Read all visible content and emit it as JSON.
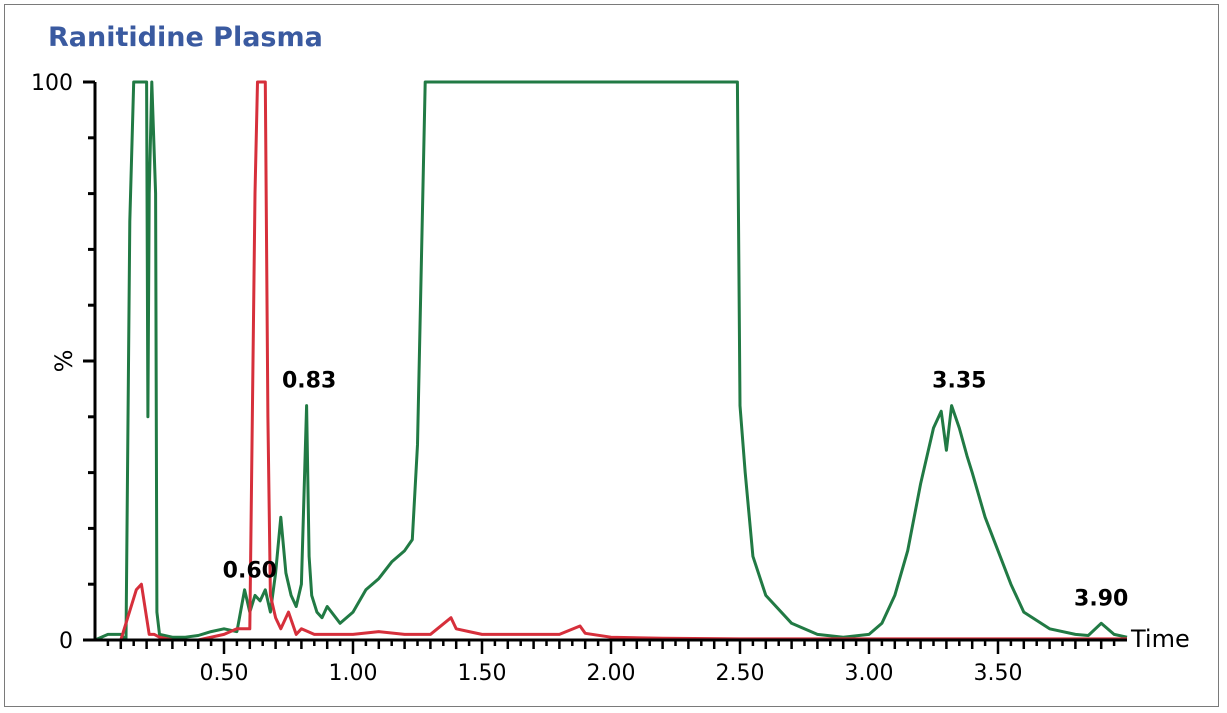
{
  "chart_data": {
    "type": "line",
    "title": "Ranitidine Plasma",
    "xlabel": "Time",
    "ylabel": "%",
    "xlim": [
      0.0,
      4.0
    ],
    "ylim": [
      0,
      100
    ],
    "y_ticks": [
      {
        "value": 0,
        "label": "0"
      },
      {
        "value": 100,
        "label": "100"
      }
    ],
    "x_ticks": [
      {
        "value": 0.5,
        "label": "0.50"
      },
      {
        "value": 1.0,
        "label": "1.00"
      },
      {
        "value": 1.5,
        "label": "1.50"
      },
      {
        "value": 2.0,
        "label": "2.00"
      },
      {
        "value": 2.5,
        "label": "2.50"
      },
      {
        "value": 3.0,
        "label": "3.00"
      },
      {
        "value": 3.5,
        "label": "3.50"
      }
    ],
    "grid": false,
    "series": [
      {
        "color": "#217a44",
        "x": [
          0.0,
          0.05,
          0.1,
          0.12,
          0.135,
          0.15,
          0.17,
          0.2,
          0.205,
          0.21,
          0.22,
          0.235,
          0.24,
          0.25,
          0.3,
          0.35,
          0.4,
          0.45,
          0.5,
          0.55,
          0.58,
          0.6,
          0.62,
          0.64,
          0.66,
          0.68,
          0.7,
          0.72,
          0.74,
          0.76,
          0.78,
          0.8,
          0.82,
          0.83,
          0.84,
          0.86,
          0.88,
          0.9,
          0.95,
          1.0,
          1.05,
          1.1,
          1.15,
          1.2,
          1.23,
          1.25,
          1.28,
          1.3,
          1.5,
          2.0,
          2.4,
          2.49,
          2.5,
          2.52,
          2.55,
          2.6,
          2.7,
          2.8,
          2.9,
          3.0,
          3.05,
          3.1,
          3.15,
          3.2,
          3.25,
          3.28,
          3.3,
          3.32,
          3.35,
          3.38,
          3.4,
          3.45,
          3.5,
          3.55,
          3.6,
          3.7,
          3.8,
          3.85,
          3.9,
          3.95,
          4.0
        ],
        "values": [
          0,
          1,
          1,
          0,
          75,
          100,
          100,
          100,
          40,
          80,
          100,
          80,
          5,
          1,
          0.5,
          0.5,
          0.8,
          1.5,
          2,
          1.5,
          9,
          5,
          8,
          7,
          9,
          5,
          12,
          22,
          12,
          8,
          6,
          10,
          42,
          15,
          8,
          5,
          4,
          6,
          3,
          5,
          9,
          11,
          14,
          16,
          18,
          35,
          100,
          100,
          100,
          100,
          100,
          100,
          42,
          30,
          15,
          8,
          3,
          1,
          0.5,
          1,
          3,
          8,
          16,
          28,
          38,
          41,
          34,
          42,
          38,
          33,
          30,
          22,
          16,
          10,
          5,
          2,
          1,
          0.8,
          3,
          1,
          0.5
        ]
      },
      {
        "color": "#d62f3b",
        "x": [
          0.0,
          0.1,
          0.16,
          0.18,
          0.2,
          0.21,
          0.23,
          0.25,
          0.3,
          0.4,
          0.5,
          0.55,
          0.6,
          0.62,
          0.63,
          0.64,
          0.66,
          0.67,
          0.68,
          0.7,
          0.72,
          0.75,
          0.78,
          0.8,
          0.85,
          0.9,
          1.0,
          1.1,
          1.2,
          1.3,
          1.38,
          1.4,
          1.45,
          1.5,
          1.6,
          1.8,
          1.88,
          1.9,
          2.0,
          2.2,
          2.5,
          3.0,
          3.5,
          4.0
        ],
        "values": [
          0,
          0,
          9,
          10,
          4,
          1,
          1,
          0.5,
          0,
          0,
          1,
          2,
          2,
          80,
          100,
          100,
          100,
          40,
          8,
          4,
          2,
          5,
          1,
          2,
          1,
          1,
          1,
          1.5,
          1,
          1,
          4,
          2,
          1.5,
          1,
          1,
          1,
          2.5,
          1.2,
          0.5,
          0.3,
          0.2,
          0.2,
          0.2,
          0.2
        ]
      }
    ],
    "annotations": [
      {
        "label": "0.60",
        "x": 0.6,
        "y": 8
      },
      {
        "label": "0.83",
        "x": 0.83,
        "y": 42
      },
      {
        "label": "3.35",
        "x": 3.35,
        "y": 42
      },
      {
        "label": "3.90",
        "x": 3.9,
        "y": 3
      }
    ]
  }
}
